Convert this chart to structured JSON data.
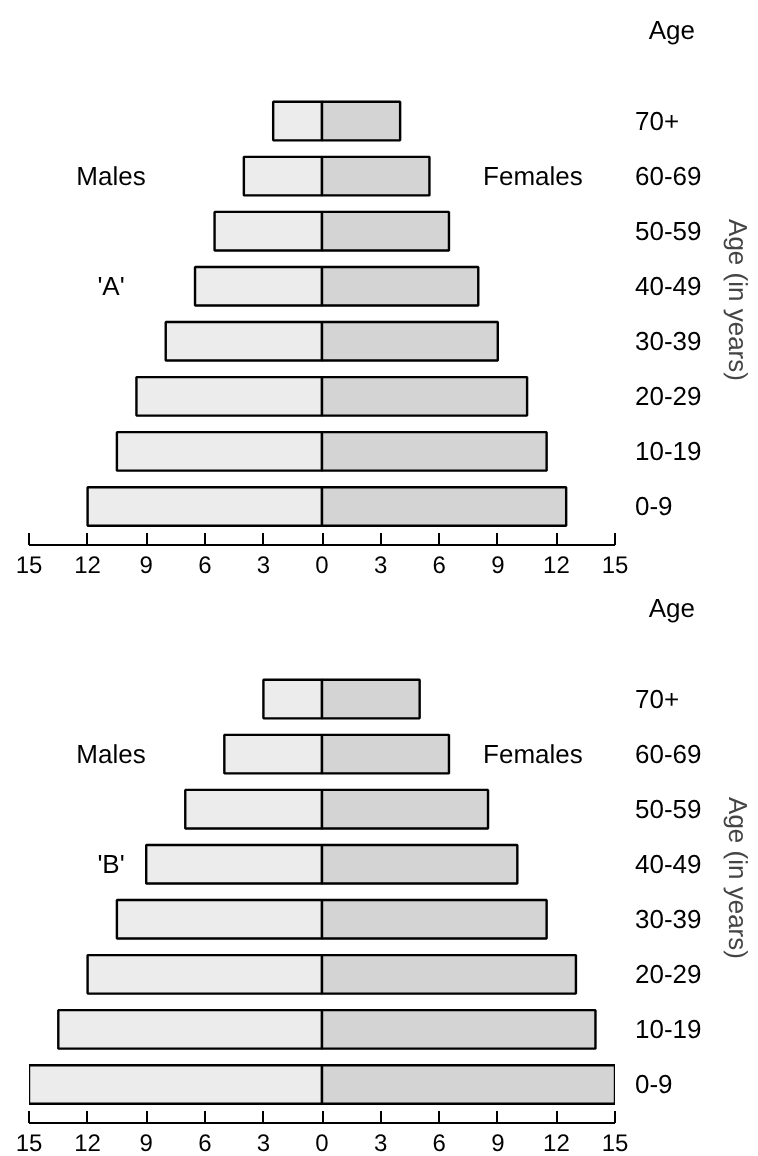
{
  "chart_data": [
    {
      "type": "bar",
      "orientation": "horizontal",
      "categories": [
        "70+",
        "60-69",
        "50-59",
        "40-49",
        "30-39",
        "20-29",
        "10-19",
        "0-9"
      ],
      "ylabel": "Age (in years)",
      "annotations": [
        "Age",
        "'A'"
      ],
      "stacked": true,
      "xlim": [
        -15,
        15
      ],
      "xticks": [
        {
          "value": -15,
          "label": "15"
        },
        {
          "value": -12,
          "label": "12"
        },
        {
          "value": -9,
          "label": "9"
        },
        {
          "value": -6,
          "label": "6"
        },
        {
          "value": -3,
          "label": "3"
        },
        0,
        3,
        6,
        9,
        12,
        15
      ],
      "grid": false,
      "series": [
        {
          "name": "Males",
          "color": "#ececec",
          "values": [
            -2.5,
            -4,
            -5.5,
            -6.5,
            -8,
            -9.5,
            -10.5,
            -12
          ]
        },
        {
          "name": "Females",
          "color": "#d4d4d4",
          "values": [
            4,
            5.5,
            6.5,
            8,
            9,
            10.5,
            11.5,
            12.5
          ]
        }
      ]
    },
    {
      "type": "bar",
      "orientation": "horizontal",
      "categories": [
        "70+",
        "60-69",
        "50-59",
        "40-49",
        "30-39",
        "20-29",
        "10-19",
        "0-9"
      ],
      "ylabel": "Age (in years)",
      "annotations": [
        "Age",
        "'B'"
      ],
      "stacked": true,
      "xlim": [
        -15,
        15
      ],
      "xticks": [
        {
          "value": -15,
          "label": "15"
        },
        {
          "value": -12,
          "label": "12"
        },
        {
          "value": -9,
          "label": "9"
        },
        {
          "value": -6,
          "label": "6"
        },
        {
          "value": -3,
          "label": "3"
        },
        0,
        3,
        6,
        9,
        12,
        15
      ],
      "grid": false,
      "series": [
        {
          "name": "Males",
          "color": "#ececec",
          "values": [
            -3,
            -5,
            -7,
            -9,
            -10.5,
            -12,
            -13.5,
            -15
          ]
        },
        {
          "name": "Females",
          "color": "#d4d4d4",
          "values": [
            5,
            6.5,
            8.5,
            10,
            11.5,
            13,
            14,
            15
          ]
        }
      ]
    }
  ]
}
